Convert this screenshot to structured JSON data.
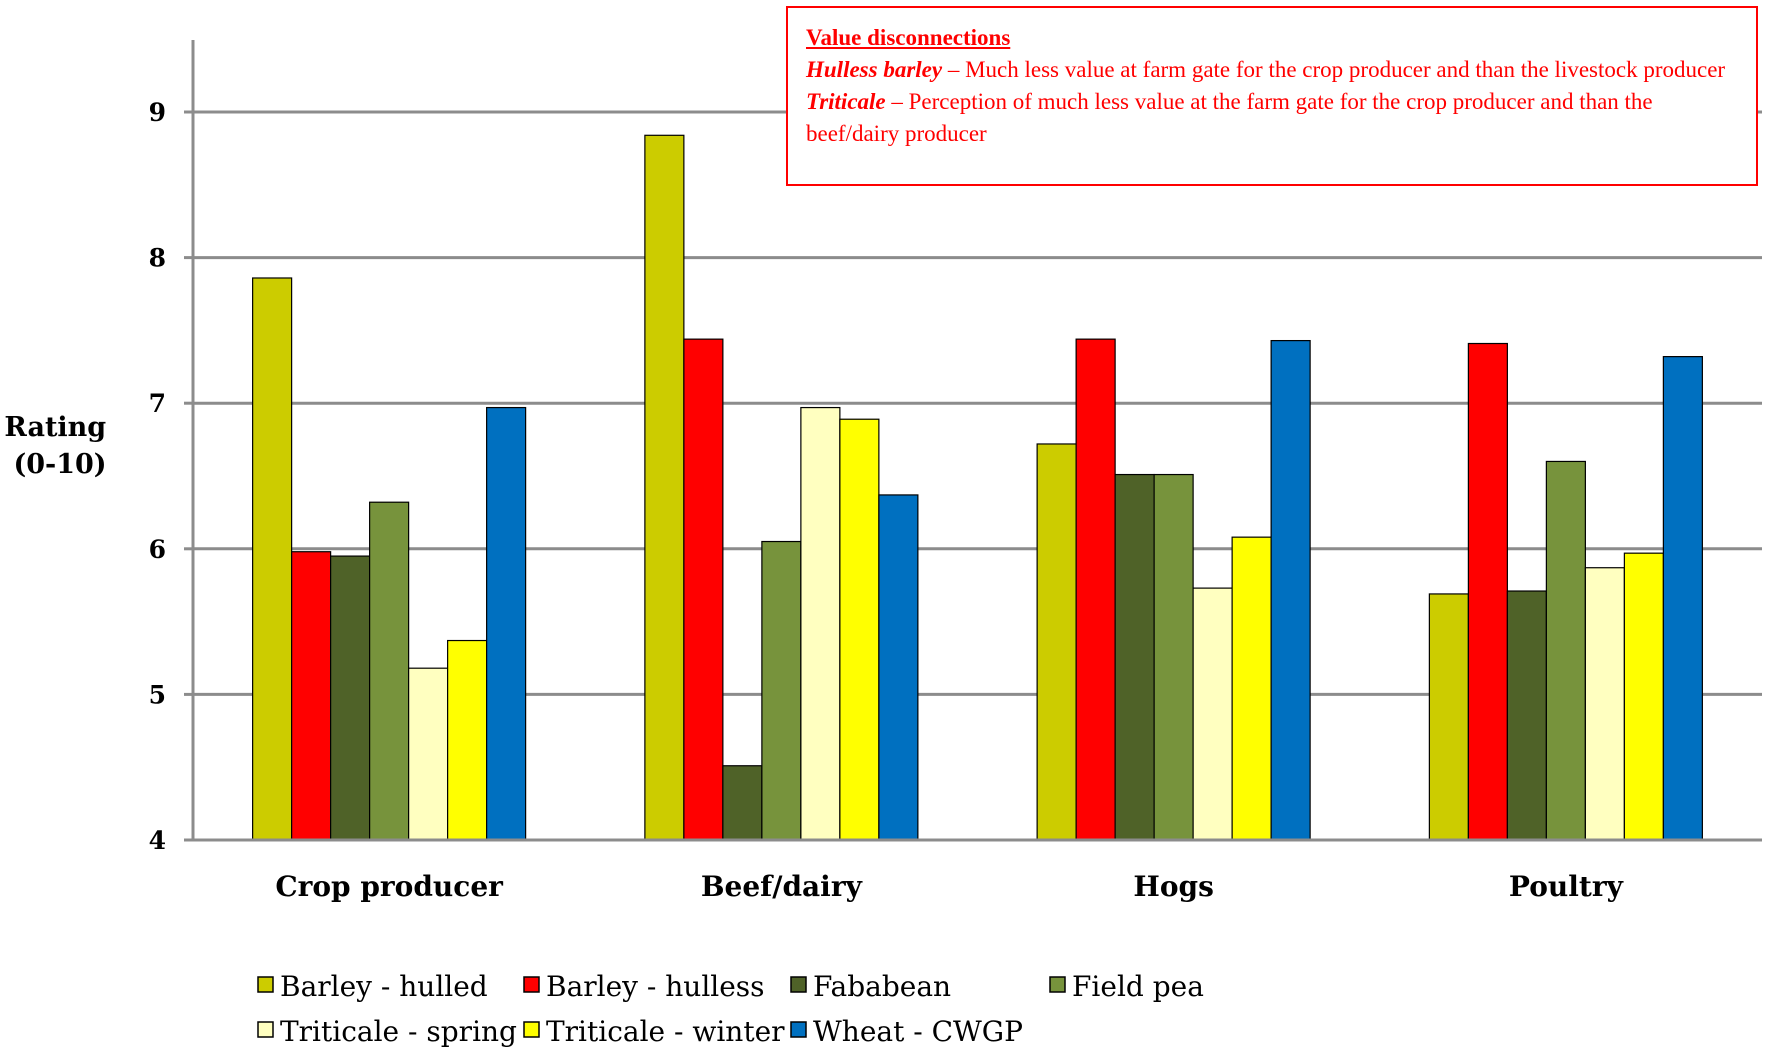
{
  "chart_data": {
    "type": "bar",
    "ylabel": "Rating\n(0-10)",
    "ylim": [
      4,
      9.5
    ],
    "yticks": [
      4,
      5,
      6,
      7,
      8,
      9
    ],
    "grid": true,
    "legend_position": "bottom-left",
    "categories": [
      "Crop producer",
      "Beef/dairy",
      "Hogs",
      "Poultry"
    ],
    "series": [
      {
        "name": "Barley - hulled",
        "color": "#cccc00",
        "values": [
          7.86,
          8.84,
          6.72,
          5.69
        ]
      },
      {
        "name": "Barley - hulless",
        "color": "#ff0000",
        "values": [
          5.98,
          7.44,
          7.44,
          7.41
        ]
      },
      {
        "name": "Fababean",
        "color": "#4f6228",
        "values": [
          5.95,
          4.51,
          6.51,
          5.71
        ]
      },
      {
        "name": "Field pea",
        "color": "#77933c",
        "values": [
          6.32,
          6.05,
          6.51,
          6.6
        ]
      },
      {
        "name": "Triticale - spring",
        "color": "#ffffc0",
        "values": [
          5.18,
          6.97,
          5.73,
          5.87
        ]
      },
      {
        "name": "Triticale - winter",
        "color": "#ffff00",
        "values": [
          5.37,
          6.89,
          6.08,
          5.97
        ]
      },
      {
        "name": "Wheat - CWGP",
        "color": "#0070c0",
        "values": [
          6.97,
          6.37,
          7.43,
          7.32
        ]
      }
    ]
  },
  "annotation": {
    "title": "Value disconnections",
    "item1_term": "Hulless barley",
    "item1_text": " – Much less value at farm gate for the crop producer and than the livestock producer",
    "item2_term": "Triticale",
    "item2_text": " – Perception of much less value at the farm gate for the crop producer and than the beef/dairy producer"
  }
}
